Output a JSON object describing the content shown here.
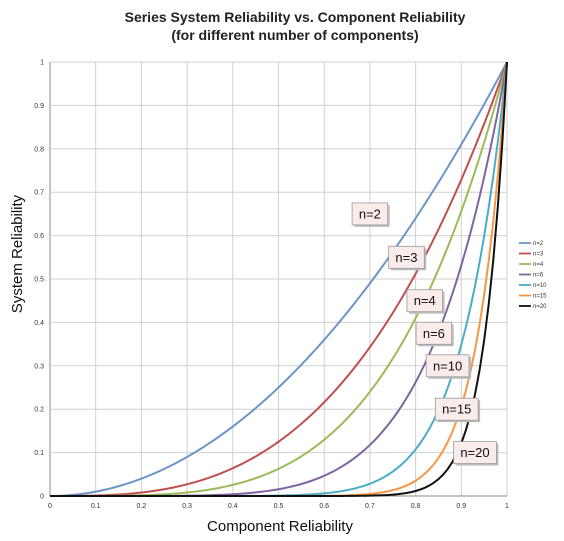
{
  "chart_data": {
    "type": "line",
    "title": "Series System Reliability vs. Component Reliability",
    "subtitle": "(for different number of components)",
    "xlabel": "Component Reliability",
    "ylabel": "System Reliability",
    "xlim": [
      0,
      1
    ],
    "ylim": [
      0,
      1
    ],
    "xticks": [
      "0",
      "0.1",
      "0.2",
      "0.3",
      "0.4",
      "0.5",
      "0.6",
      "0.7",
      "0.8",
      "0.9",
      "1"
    ],
    "yticks": [
      "0",
      "0.1",
      "0.2",
      "0.3",
      "0.4",
      "0.5",
      "0.6",
      "0.7",
      "0.8",
      "0.9",
      "1"
    ],
    "grid": true,
    "legend_position": "right",
    "x": [
      0,
      0.05,
      0.1,
      0.15,
      0.2,
      0.25,
      0.3,
      0.35,
      0.4,
      0.45,
      0.5,
      0.55,
      0.6,
      0.65,
      0.7,
      0.75,
      0.8,
      0.85,
      0.9,
      0.95,
      1
    ],
    "series": [
      {
        "name": "n=2",
        "color": "#6b95c8",
        "values": [
          0,
          0.0025,
          0.01,
          0.0225,
          0.04,
          0.0625,
          0.09,
          0.1225,
          0.16,
          0.2025,
          0.25,
          0.3025,
          0.36,
          0.4225,
          0.49,
          0.5625,
          0.64,
          0.7225,
          0.81,
          0.9025,
          1
        ]
      },
      {
        "name": "n=3",
        "color": "#c0504d",
        "values": [
          0,
          0.0001,
          0.001,
          0.0034,
          0.008,
          0.0156,
          0.027,
          0.0429,
          0.064,
          0.0911,
          0.125,
          0.1664,
          0.216,
          0.2746,
          0.343,
          0.4219,
          0.512,
          0.6141,
          0.729,
          0.8574,
          1
        ]
      },
      {
        "name": "n=4",
        "color": "#9bbb59",
        "values": [
          0,
          0,
          0.0001,
          0.0005,
          0.0016,
          0.0039,
          0.0081,
          0.015,
          0.0256,
          0.041,
          0.0625,
          0.0915,
          0.1296,
          0.1785,
          0.2401,
          0.3164,
          0.4096,
          0.522,
          0.6561,
          0.8145,
          1
        ]
      },
      {
        "name": "n=6",
        "color": "#8064a2",
        "values": [
          0,
          0,
          0,
          0,
          0.0001,
          0.0002,
          0.0007,
          0.0018,
          0.0041,
          0.0083,
          0.0156,
          0.0277,
          0.0467,
          0.0754,
          0.1176,
          0.178,
          0.2621,
          0.3771,
          0.5314,
          0.7351,
          1
        ]
      },
      {
        "name": "n=10",
        "color": "#4bacc6",
        "values": [
          0,
          0,
          0,
          0,
          0,
          0,
          0,
          0,
          0.0001,
          0.0003,
          0.001,
          0.0025,
          0.006,
          0.0135,
          0.0282,
          0.0563,
          0.1074,
          0.1969,
          0.3487,
          0.5987,
          1
        ]
      },
      {
        "name": "n=15",
        "color": "#f79646",
        "values": [
          0,
          0,
          0,
          0,
          0,
          0,
          0,
          0,
          0,
          0,
          0,
          0.0001,
          0.0005,
          0.0016,
          0.0047,
          0.0134,
          0.0352,
          0.0874,
          0.2059,
          0.4633,
          1
        ]
      },
      {
        "name": "n=20",
        "color": "#111111",
        "values": [
          0,
          0,
          0,
          0,
          0,
          0,
          0,
          0,
          0,
          0,
          0,
          0,
          0,
          0.0002,
          0.0008,
          0.0032,
          0.0115,
          0.0388,
          0.1216,
          0.3585,
          1
        ]
      }
    ],
    "annotations": [
      {
        "text": "n=2",
        "series": "n=2",
        "label_at": [
          0.7,
          0.65
        ]
      },
      {
        "text": "n=3",
        "series": "n=3",
        "label_at": [
          0.78,
          0.55
        ]
      },
      {
        "text": "n=4",
        "series": "n=4",
        "label_at": [
          0.82,
          0.45
        ]
      },
      {
        "text": "n=6",
        "series": "n=6",
        "label_at": [
          0.84,
          0.375
        ]
      },
      {
        "text": "n=10",
        "series": "n=10",
        "label_at": [
          0.87,
          0.3
        ]
      },
      {
        "text": "n=15",
        "series": "n=15",
        "label_at": [
          0.89,
          0.2
        ]
      },
      {
        "text": "n=20",
        "series": "n=20",
        "label_at": [
          0.93,
          0.1
        ]
      }
    ]
  }
}
